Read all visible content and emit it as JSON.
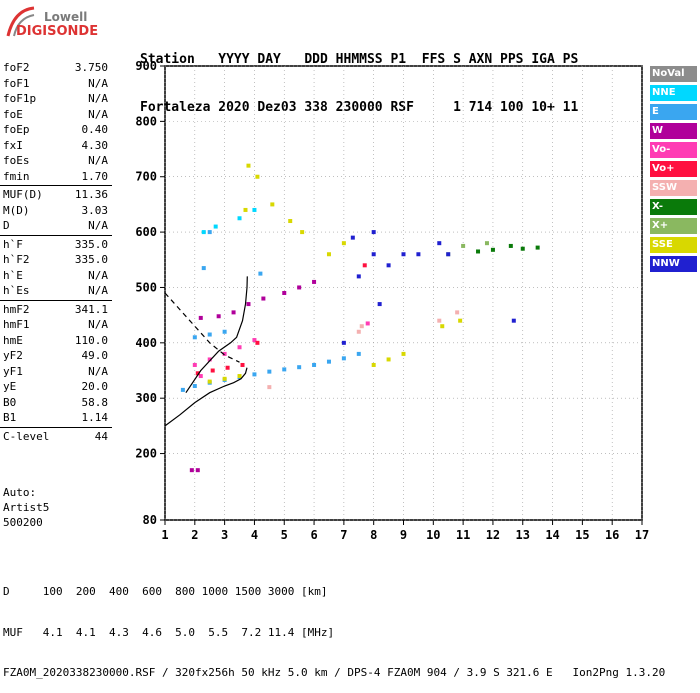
{
  "logo": {
    "line1": "Lowell",
    "line2": "DIGISONDE"
  },
  "header": {
    "line1": "Station   YYYY DAY   DDD HHMMSS P1  FFS S AXN PPS IGA PS",
    "line2": "Fortaleza 2020 Dez03 338 230000 RSF     1 714 100 10+ 11"
  },
  "params": {
    "group1": [
      {
        "name": "foF2",
        "value": "3.750"
      },
      {
        "name": "foF1",
        "value": "N/A"
      },
      {
        "name": "foF1p",
        "value": "N/A"
      },
      {
        "name": "foE",
        "value": "N/A"
      },
      {
        "name": "foEp",
        "value": "0.40"
      },
      {
        "name": "fxI",
        "value": "4.30"
      },
      {
        "name": "foEs",
        "value": "N/A"
      },
      {
        "name": "fmin",
        "value": "1.70"
      }
    ],
    "group2": [
      {
        "name": "MUF(D)",
        "value": "11.36"
      },
      {
        "name": "M(D)",
        "value": "3.03"
      },
      {
        "name": "D",
        "value": "N/A"
      }
    ],
    "group3": [
      {
        "name": "h`F",
        "value": "335.0"
      },
      {
        "name": "h`F2",
        "value": "335.0"
      },
      {
        "name": "h`E",
        "value": "N/A"
      },
      {
        "name": "h`Es",
        "value": "N/A"
      }
    ],
    "group4": [
      {
        "name": "hmF2",
        "value": "341.1"
      },
      {
        "name": "hmF1",
        "value": "N/A"
      },
      {
        "name": "hmE",
        "value": "110.0"
      },
      {
        "name": "yF2",
        "value": "49.0"
      },
      {
        "name": "yF1",
        "value": "N/A"
      },
      {
        "name": "yE",
        "value": "20.0"
      },
      {
        "name": "B0",
        "value": "58.8"
      },
      {
        "name": "B1",
        "value": "1.14"
      }
    ],
    "group5": [
      {
        "name": "C-level",
        "value": "44"
      }
    ]
  },
  "auto": {
    "line1": "Auto:",
    "line2": "Artist5",
    "line3": "500200"
  },
  "footer": {
    "line1": "D     100  200  400  600  800 1000 1500 3000 [km]",
    "line2": "MUF   4.1  4.1  4.3  4.6  5.0  5.5  7.2 11.4 [MHz]",
    "line3": "FZA0M_2020338230000.RSF / 320fx256h 50 kHz 5.0 km / DPS-4 FZA0M 904 / 3.9 S 321.6 E   Ion2Png 1.3.20"
  },
  "legend": [
    {
      "label": "NoVal",
      "color": "#8c8c8c"
    },
    {
      "label": "NNE",
      "color": "#00d8ff"
    },
    {
      "label": "E",
      "color": "#3aa6f0"
    },
    {
      "label": "W",
      "color": "#b0009a"
    },
    {
      "label": "Vo-",
      "color": "#ff3cb4"
    },
    {
      "label": "Vo+",
      "color": "#ff1040"
    },
    {
      "label": "SSW",
      "color": "#f4b0b0"
    },
    {
      "label": "X-",
      "color": "#0a7a0a"
    },
    {
      "label": "X+",
      "color": "#8ab860"
    },
    {
      "label": "SSE",
      "color": "#d8d800"
    },
    {
      "label": "NNW",
      "color": "#2020d0"
    }
  ],
  "chart_data": {
    "type": "scatter",
    "title": "",
    "xlabel": "",
    "ylabel": "",
    "xlim": [
      1,
      17
    ],
    "ylim": [
      80,
      900
    ],
    "x_ticks": [
      1,
      2,
      3,
      4,
      5,
      6,
      7,
      8,
      9,
      10,
      11,
      12,
      13,
      14,
      15,
      16,
      17
    ],
    "y_ticks": [
      80,
      200,
      300,
      400,
      500,
      600,
      700,
      800,
      900
    ],
    "grid": "dotted",
    "series": [
      {
        "name": "E",
        "color": "#3aa6f0",
        "points": [
          [
            1.6,
            315
          ],
          [
            2.0,
            322
          ],
          [
            2.5,
            328
          ],
          [
            3.0,
            333
          ],
          [
            3.5,
            338
          ],
          [
            4.0,
            343
          ],
          [
            4.5,
            348
          ],
          [
            5.0,
            352
          ],
          [
            5.5,
            356
          ],
          [
            6.0,
            360
          ],
          [
            6.5,
            366
          ],
          [
            7.0,
            372
          ],
          [
            7.5,
            380
          ],
          [
            2.0,
            410
          ],
          [
            2.5,
            415
          ],
          [
            3.0,
            420
          ],
          [
            2.3,
            535
          ],
          [
            2.5,
            600
          ],
          [
            4.2,
            525
          ]
        ]
      },
      {
        "name": "W",
        "color": "#b0009a",
        "points": [
          [
            2.2,
            445
          ],
          [
            2.8,
            448
          ],
          [
            3.3,
            455
          ],
          [
            3.8,
            470
          ],
          [
            4.3,
            480
          ],
          [
            5.0,
            490
          ],
          [
            5.5,
            500
          ],
          [
            6.0,
            510
          ],
          [
            1.9,
            170
          ],
          [
            2.1,
            170
          ]
        ]
      },
      {
        "name": "Vo-",
        "color": "#ff3cb4",
        "points": [
          [
            2.0,
            360
          ],
          [
            2.5,
            370
          ],
          [
            3.0,
            380
          ],
          [
            3.5,
            392
          ],
          [
            4.0,
            405
          ],
          [
            2.2,
            340
          ],
          [
            7.8,
            435
          ]
        ]
      },
      {
        "name": "Vo+",
        "color": "#ff1040",
        "points": [
          [
            2.1,
            345
          ],
          [
            2.6,
            350
          ],
          [
            3.1,
            355
          ],
          [
            3.6,
            360
          ],
          [
            4.1,
            400
          ],
          [
            7.7,
            540
          ]
        ]
      },
      {
        "name": "SSW",
        "color": "#f4b0b0",
        "points": [
          [
            7.5,
            420
          ],
          [
            7.6,
            430
          ],
          [
            10.2,
            440
          ],
          [
            10.8,
            455
          ],
          [
            4.5,
            320
          ]
        ]
      },
      {
        "name": "X-",
        "color": "#0a7a0a",
        "points": [
          [
            11.5,
            565
          ],
          [
            12.0,
            568
          ],
          [
            12.6,
            575
          ],
          [
            13.0,
            570
          ],
          [
            13.5,
            572
          ]
        ]
      },
      {
        "name": "X+",
        "color": "#8ab860",
        "points": [
          [
            10.5,
            560
          ],
          [
            11.0,
            575
          ],
          [
            11.8,
            580
          ]
        ]
      },
      {
        "name": "SSE",
        "color": "#d8d800",
        "points": [
          [
            2.5,
            330
          ],
          [
            3.0,
            335
          ],
          [
            3.5,
            340
          ],
          [
            3.8,
            720
          ],
          [
            3.7,
            640
          ],
          [
            4.1,
            700
          ],
          [
            4.6,
            650
          ],
          [
            5.2,
            620
          ],
          [
            5.6,
            600
          ],
          [
            6.5,
            560
          ],
          [
            7.0,
            580
          ],
          [
            8.0,
            360
          ],
          [
            8.5,
            370
          ],
          [
            9.0,
            380
          ],
          [
            10.3,
            430
          ],
          [
            10.9,
            440
          ]
        ]
      },
      {
        "name": "NNW",
        "color": "#2020d0",
        "points": [
          [
            7.0,
            400
          ],
          [
            7.5,
            520
          ],
          [
            8.0,
            600
          ],
          [
            8.0,
            560
          ],
          [
            8.2,
            470
          ],
          [
            8.5,
            540
          ],
          [
            9.0,
            560
          ],
          [
            9.5,
            560
          ],
          [
            10.2,
            580
          ],
          [
            10.5,
            560
          ],
          [
            12.7,
            440
          ],
          [
            7.3,
            590
          ]
        ]
      },
      {
        "name": "NNE",
        "color": "#00d8ff",
        "points": [
          [
            2.3,
            600
          ],
          [
            2.7,
            610
          ],
          [
            3.5,
            625
          ],
          [
            4.0,
            640
          ]
        ]
      }
    ],
    "profile_curve": [
      [
        1.0,
        250
      ],
      [
        1.5,
        270
      ],
      [
        2.0,
        292
      ],
      [
        2.5,
        310
      ],
      [
        3.0,
        322
      ],
      [
        3.3,
        328
      ],
      [
        3.55,
        335
      ],
      [
        3.7,
        345
      ],
      [
        3.75,
        355
      ]
    ],
    "ordinary_trace": [
      [
        1.7,
        310
      ],
      [
        2.2,
        350
      ],
      [
        2.8,
        385
      ],
      [
        3.2,
        400
      ],
      [
        3.4,
        410
      ],
      [
        3.6,
        440
      ],
      [
        3.7,
        470
      ],
      [
        3.75,
        500
      ],
      [
        3.76,
        520
      ]
    ],
    "dashed_trace": [
      [
        1.0,
        490
      ],
      [
        1.5,
        460
      ],
      [
        2.0,
        430
      ],
      [
        2.5,
        400
      ],
      [
        3.0,
        378
      ],
      [
        3.5,
        365
      ]
    ]
  }
}
